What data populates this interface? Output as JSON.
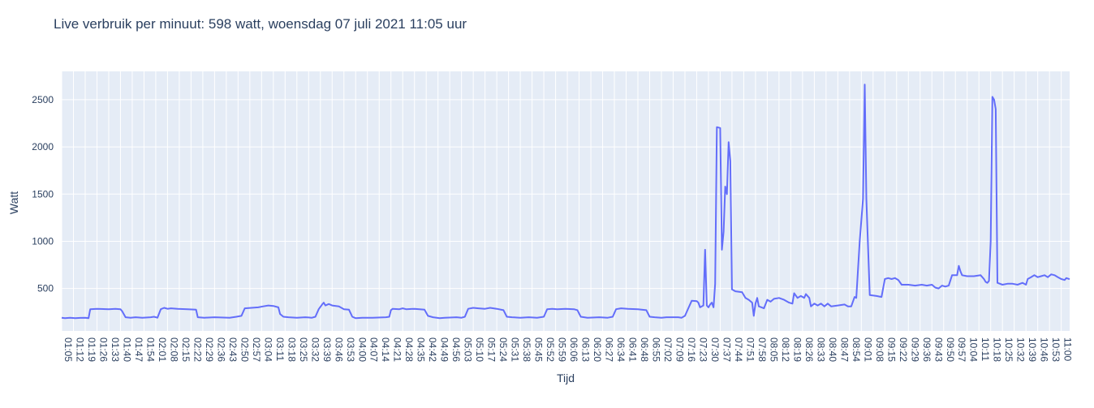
{
  "chart_data": {
    "type": "line",
    "title": "Live verbruik per minuut: 598 watt, woensdag 07 juli 2021 11:05 uur",
    "xlabel": "Tijd",
    "ylabel": "Watt",
    "ylim": [
      50,
      2800
    ],
    "yticks": [
      500,
      1000,
      1500,
      2000,
      2500
    ],
    "grid": true,
    "line_color": "#636efa",
    "plot_bg": "#e5ecf6",
    "x_tick_labels": [
      "01:05",
      "01:12",
      "01:19",
      "01:26",
      "01:33",
      "01:40",
      "01:47",
      "01:54",
      "02:01",
      "02:08",
      "02:15",
      "02:22",
      "02:29",
      "02:36",
      "02:43",
      "02:50",
      "02:57",
      "03:04",
      "03:11",
      "03:18",
      "03:25",
      "03:32",
      "03:39",
      "03:46",
      "03:53",
      "04:00",
      "04:07",
      "04:14",
      "04:21",
      "04:28",
      "04:35",
      "04:42",
      "04:49",
      "04:56",
      "05:03",
      "05:10",
      "05:17",
      "05:24",
      "05:31",
      "05:38",
      "05:45",
      "05:52",
      "05:59",
      "06:06",
      "06:13",
      "06:20",
      "06:27",
      "06:34",
      "06:41",
      "06:48",
      "06:55",
      "07:02",
      "07:09",
      "07:16",
      "07:23",
      "07:30",
      "07:37",
      "07:44",
      "07:51",
      "07:58",
      "08:05",
      "08:12",
      "08:19",
      "08:26",
      "08:33",
      "08:40",
      "08:47",
      "08:54",
      "09:01",
      "09:08",
      "09:15",
      "09:22",
      "09:29",
      "09:36",
      "09:43",
      "09:50",
      "09:57",
      "10:04",
      "10:11",
      "10:18",
      "10:25",
      "10:32",
      "10:39",
      "10:46",
      "10:53",
      "11:00"
    ],
    "series": [
      {
        "points": [
          [
            "01:05",
            190
          ],
          [
            "01:07",
            185
          ],
          [
            "01:10",
            190
          ],
          [
            "01:13",
            185
          ],
          [
            "01:16",
            188
          ],
          [
            "01:19",
            190
          ],
          [
            "01:21",
            185
          ],
          [
            "01:22",
            280
          ],
          [
            "01:26",
            285
          ],
          [
            "01:33",
            280
          ],
          [
            "01:37",
            285
          ],
          [
            "01:40",
            280
          ],
          [
            "01:41",
            260
          ],
          [
            "01:43",
            195
          ],
          [
            "01:46",
            190
          ],
          [
            "01:49",
            195
          ],
          [
            "01:53",
            190
          ],
          [
            "01:58",
            195
          ],
          [
            "02:00",
            200
          ],
          [
            "02:02",
            190
          ],
          [
            "02:04",
            280
          ],
          [
            "02:06",
            295
          ],
          [
            "02:08",
            285
          ],
          [
            "02:10",
            290
          ],
          [
            "02:14",
            285
          ],
          [
            "02:20",
            280
          ],
          [
            "02:25",
            275
          ],
          [
            "02:26",
            195
          ],
          [
            "02:30",
            190
          ],
          [
            "02:36",
            195
          ],
          [
            "02:45",
            190
          ],
          [
            "02:49",
            200
          ],
          [
            "02:52",
            210
          ],
          [
            "02:54",
            290
          ],
          [
            "02:58",
            295
          ],
          [
            "03:02",
            300
          ],
          [
            "03:05",
            310
          ],
          [
            "03:08",
            320
          ],
          [
            "03:11",
            315
          ],
          [
            "03:14",
            300
          ],
          [
            "03:15",
            230
          ],
          [
            "03:17",
            200
          ],
          [
            "03:20",
            195
          ],
          [
            "03:25",
            190
          ],
          [
            "03:30",
            195
          ],
          [
            "03:34",
            190
          ],
          [
            "03:36",
            200
          ],
          [
            "03:38",
            280
          ],
          [
            "03:40",
            330
          ],
          [
            "03:41",
            350
          ],
          [
            "03:42",
            320
          ],
          [
            "03:44",
            335
          ],
          [
            "03:46",
            320
          ],
          [
            "03:50",
            310
          ],
          [
            "03:53",
            280
          ],
          [
            "03:56",
            275
          ],
          [
            "03:58",
            200
          ],
          [
            "04:00",
            185
          ],
          [
            "04:04",
            190
          ],
          [
            "04:10",
            190
          ],
          [
            "04:18",
            195
          ],
          [
            "04:20",
            200
          ],
          [
            "04:21",
            270
          ],
          [
            "04:22",
            285
          ],
          [
            "04:26",
            280
          ],
          [
            "04:28",
            290
          ],
          [
            "04:30",
            280
          ],
          [
            "04:35",
            285
          ],
          [
            "04:41",
            275
          ],
          [
            "04:43",
            210
          ],
          [
            "04:46",
            195
          ],
          [
            "04:50",
            185
          ],
          [
            "04:53",
            190
          ],
          [
            "05:00",
            195
          ],
          [
            "05:03",
            190
          ],
          [
            "05:05",
            200
          ],
          [
            "05:07",
            285
          ],
          [
            "05:10",
            295
          ],
          [
            "05:13",
            290
          ],
          [
            "05:17",
            285
          ],
          [
            "05:20",
            295
          ],
          [
            "05:24",
            285
          ],
          [
            "05:28",
            270
          ],
          [
            "05:30",
            200
          ],
          [
            "05:33",
            195
          ],
          [
            "05:38",
            190
          ],
          [
            "05:43",
            195
          ],
          [
            "05:48",
            190
          ],
          [
            "05:52",
            200
          ],
          [
            "05:54",
            280
          ],
          [
            "05:57",
            285
          ],
          [
            "06:00",
            280
          ],
          [
            "06:05",
            285
          ],
          [
            "06:10",
            280
          ],
          [
            "06:12",
            270
          ],
          [
            "06:14",
            200
          ],
          [
            "06:18",
            190
          ],
          [
            "06:25",
            195
          ],
          [
            "06:30",
            190
          ],
          [
            "06:33",
            200
          ],
          [
            "06:35",
            280
          ],
          [
            "06:38",
            290
          ],
          [
            "06:42",
            285
          ],
          [
            "06:48",
            280
          ],
          [
            "06:53",
            270
          ],
          [
            "06:55",
            200
          ],
          [
            "06:58",
            195
          ],
          [
            "07:02",
            190
          ],
          [
            "07:05",
            195
          ],
          [
            "07:12",
            195
          ],
          [
            "07:14",
            190
          ],
          [
            "07:16",
            210
          ],
          [
            "07:18",
            290
          ],
          [
            "07:20",
            370
          ],
          [
            "07:23",
            365
          ],
          [
            "07:24",
            350
          ],
          [
            "07:25",
            300
          ],
          [
            "07:27",
            320
          ],
          [
            "07:28",
            910
          ],
          [
            "07:29",
            320
          ],
          [
            "07:30",
            300
          ],
          [
            "07:31",
            330
          ],
          [
            "07:32",
            350
          ],
          [
            "07:33",
            300
          ],
          [
            "07:34",
            550
          ],
          [
            "07:35",
            2210
          ],
          [
            "07:37",
            2200
          ],
          [
            "07:38",
            910
          ],
          [
            "07:39",
            1100
          ],
          [
            "07:40",
            1580
          ],
          [
            "07:41",
            1500
          ],
          [
            "07:42",
            2050
          ],
          [
            "07:43",
            1850
          ],
          [
            "07:44",
            490
          ],
          [
            "07:46",
            470
          ],
          [
            "07:50",
            460
          ],
          [
            "07:52",
            400
          ],
          [
            "07:54",
            380
          ],
          [
            "07:56",
            350
          ],
          [
            "07:57",
            210
          ],
          [
            "07:58",
            340
          ],
          [
            "07:59",
            400
          ],
          [
            "08:00",
            310
          ],
          [
            "08:03",
            290
          ],
          [
            "08:05",
            380
          ],
          [
            "08:07",
            360
          ],
          [
            "08:09",
            390
          ],
          [
            "08:12",
            400
          ],
          [
            "08:15",
            380
          ],
          [
            "08:18",
            350
          ],
          [
            "08:20",
            340
          ],
          [
            "08:21",
            450
          ],
          [
            "08:23",
            400
          ],
          [
            "08:25",
            420
          ],
          [
            "08:27",
            400
          ],
          [
            "08:28",
            440
          ],
          [
            "08:30",
            400
          ],
          [
            "08:31",
            310
          ],
          [
            "08:33",
            340
          ],
          [
            "08:35",
            320
          ],
          [
            "08:37",
            340
          ],
          [
            "08:39",
            310
          ],
          [
            "08:41",
            340
          ],
          [
            "08:43",
            310
          ],
          [
            "08:47",
            320
          ],
          [
            "08:51",
            330
          ],
          [
            "08:53",
            310
          ],
          [
            "08:55",
            310
          ],
          [
            "08:57",
            410
          ],
          [
            "08:58",
            400
          ],
          [
            "09:00",
            1000
          ],
          [
            "09:02",
            1450
          ],
          [
            "09:03",
            2660
          ],
          [
            "09:04",
            1450
          ],
          [
            "09:06",
            430
          ],
          [
            "09:10",
            420
          ],
          [
            "09:13",
            410
          ],
          [
            "09:15",
            600
          ],
          [
            "09:17",
            610
          ],
          [
            "09:19",
            600
          ],
          [
            "09:21",
            610
          ],
          [
            "09:23",
            590
          ],
          [
            "09:25",
            540
          ],
          [
            "09:29",
            540
          ],
          [
            "09:33",
            530
          ],
          [
            "09:37",
            540
          ],
          [
            "09:40",
            530
          ],
          [
            "09:43",
            540
          ],
          [
            "09:45",
            510
          ],
          [
            "09:47",
            500
          ],
          [
            "09:49",
            530
          ],
          [
            "09:51",
            520
          ],
          [
            "09:53",
            530
          ],
          [
            "09:55",
            640
          ],
          [
            "09:58",
            640
          ],
          [
            "09:59",
            740
          ],
          [
            "10:00",
            680
          ],
          [
            "10:01",
            640
          ],
          [
            "10:04",
            630
          ],
          [
            "10:08",
            630
          ],
          [
            "10:12",
            640
          ],
          [
            "10:14",
            600
          ],
          [
            "10:15",
            570
          ],
          [
            "10:16",
            560
          ],
          [
            "10:17",
            580
          ],
          [
            "10:18",
            1000
          ],
          [
            "10:19",
            2530
          ],
          [
            "10:20",
            2500
          ],
          [
            "10:21",
            2400
          ],
          [
            "10:22",
            560
          ],
          [
            "10:25",
            540
          ],
          [
            "10:28",
            550
          ],
          [
            "10:31",
            550
          ],
          [
            "10:34",
            540
          ],
          [
            "10:37",
            560
          ],
          [
            "10:39",
            540
          ],
          [
            "10:40",
            600
          ],
          [
            "10:42",
            620
          ],
          [
            "10:44",
            640
          ],
          [
            "10:46",
            620
          ],
          [
            "10:48",
            630
          ],
          [
            "10:50",
            640
          ],
          [
            "10:52",
            620
          ],
          [
            "10:54",
            650
          ],
          [
            "10:56",
            640
          ],
          [
            "10:58",
            620
          ],
          [
            "11:00",
            600
          ],
          [
            "11:02",
            590
          ],
          [
            "11:03",
            610
          ],
          [
            "11:05",
            598
          ]
        ]
      }
    ]
  }
}
